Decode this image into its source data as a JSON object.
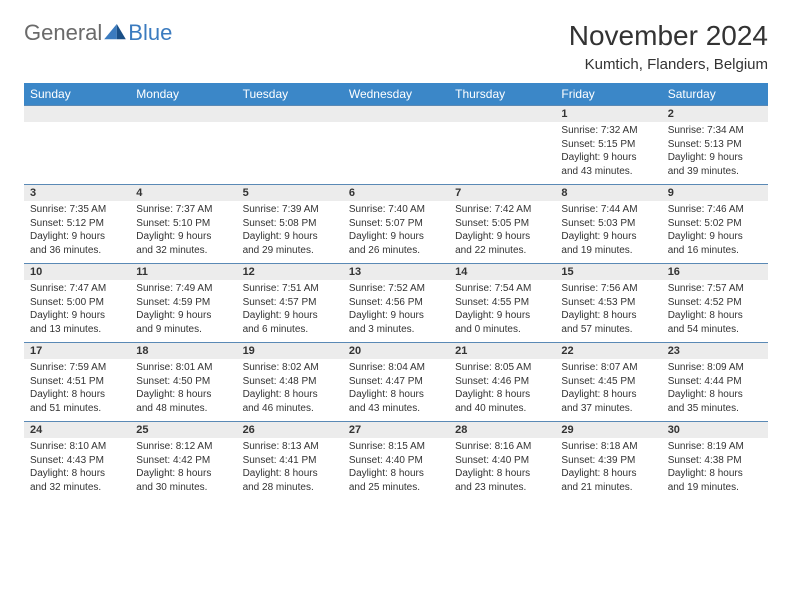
{
  "brand": {
    "part1": "General",
    "part2": "Blue"
  },
  "title": "November 2024",
  "location": "Kumtich, Flanders, Belgium",
  "colors": {
    "header_bg": "#3b87c8",
    "header_text": "#ffffff",
    "daynum_bg": "#ececec",
    "border": "#5a89b5",
    "logo_gray": "#6a6a6a",
    "logo_blue": "#3b7bbf"
  },
  "days": [
    "Sunday",
    "Monday",
    "Tuesday",
    "Wednesday",
    "Thursday",
    "Friday",
    "Saturday"
  ],
  "weeks": [
    [
      {
        "n": "",
        "sr": "",
        "ss": "",
        "dl": ""
      },
      {
        "n": "",
        "sr": "",
        "ss": "",
        "dl": ""
      },
      {
        "n": "",
        "sr": "",
        "ss": "",
        "dl": ""
      },
      {
        "n": "",
        "sr": "",
        "ss": "",
        "dl": ""
      },
      {
        "n": "",
        "sr": "",
        "ss": "",
        "dl": ""
      },
      {
        "n": "1",
        "sr": "Sunrise: 7:32 AM",
        "ss": "Sunset: 5:15 PM",
        "dl": "Daylight: 9 hours and 43 minutes."
      },
      {
        "n": "2",
        "sr": "Sunrise: 7:34 AM",
        "ss": "Sunset: 5:13 PM",
        "dl": "Daylight: 9 hours and 39 minutes."
      }
    ],
    [
      {
        "n": "3",
        "sr": "Sunrise: 7:35 AM",
        "ss": "Sunset: 5:12 PM",
        "dl": "Daylight: 9 hours and 36 minutes."
      },
      {
        "n": "4",
        "sr": "Sunrise: 7:37 AM",
        "ss": "Sunset: 5:10 PM",
        "dl": "Daylight: 9 hours and 32 minutes."
      },
      {
        "n": "5",
        "sr": "Sunrise: 7:39 AM",
        "ss": "Sunset: 5:08 PM",
        "dl": "Daylight: 9 hours and 29 minutes."
      },
      {
        "n": "6",
        "sr": "Sunrise: 7:40 AM",
        "ss": "Sunset: 5:07 PM",
        "dl": "Daylight: 9 hours and 26 minutes."
      },
      {
        "n": "7",
        "sr": "Sunrise: 7:42 AM",
        "ss": "Sunset: 5:05 PM",
        "dl": "Daylight: 9 hours and 22 minutes."
      },
      {
        "n": "8",
        "sr": "Sunrise: 7:44 AM",
        "ss": "Sunset: 5:03 PM",
        "dl": "Daylight: 9 hours and 19 minutes."
      },
      {
        "n": "9",
        "sr": "Sunrise: 7:46 AM",
        "ss": "Sunset: 5:02 PM",
        "dl": "Daylight: 9 hours and 16 minutes."
      }
    ],
    [
      {
        "n": "10",
        "sr": "Sunrise: 7:47 AM",
        "ss": "Sunset: 5:00 PM",
        "dl": "Daylight: 9 hours and 13 minutes."
      },
      {
        "n": "11",
        "sr": "Sunrise: 7:49 AM",
        "ss": "Sunset: 4:59 PM",
        "dl": "Daylight: 9 hours and 9 minutes."
      },
      {
        "n": "12",
        "sr": "Sunrise: 7:51 AM",
        "ss": "Sunset: 4:57 PM",
        "dl": "Daylight: 9 hours and 6 minutes."
      },
      {
        "n": "13",
        "sr": "Sunrise: 7:52 AM",
        "ss": "Sunset: 4:56 PM",
        "dl": "Daylight: 9 hours and 3 minutes."
      },
      {
        "n": "14",
        "sr": "Sunrise: 7:54 AM",
        "ss": "Sunset: 4:55 PM",
        "dl": "Daylight: 9 hours and 0 minutes."
      },
      {
        "n": "15",
        "sr": "Sunrise: 7:56 AM",
        "ss": "Sunset: 4:53 PM",
        "dl": "Daylight: 8 hours and 57 minutes."
      },
      {
        "n": "16",
        "sr": "Sunrise: 7:57 AM",
        "ss": "Sunset: 4:52 PM",
        "dl": "Daylight: 8 hours and 54 minutes."
      }
    ],
    [
      {
        "n": "17",
        "sr": "Sunrise: 7:59 AM",
        "ss": "Sunset: 4:51 PM",
        "dl": "Daylight: 8 hours and 51 minutes."
      },
      {
        "n": "18",
        "sr": "Sunrise: 8:01 AM",
        "ss": "Sunset: 4:50 PM",
        "dl": "Daylight: 8 hours and 48 minutes."
      },
      {
        "n": "19",
        "sr": "Sunrise: 8:02 AM",
        "ss": "Sunset: 4:48 PM",
        "dl": "Daylight: 8 hours and 46 minutes."
      },
      {
        "n": "20",
        "sr": "Sunrise: 8:04 AM",
        "ss": "Sunset: 4:47 PM",
        "dl": "Daylight: 8 hours and 43 minutes."
      },
      {
        "n": "21",
        "sr": "Sunrise: 8:05 AM",
        "ss": "Sunset: 4:46 PM",
        "dl": "Daylight: 8 hours and 40 minutes."
      },
      {
        "n": "22",
        "sr": "Sunrise: 8:07 AM",
        "ss": "Sunset: 4:45 PM",
        "dl": "Daylight: 8 hours and 37 minutes."
      },
      {
        "n": "23",
        "sr": "Sunrise: 8:09 AM",
        "ss": "Sunset: 4:44 PM",
        "dl": "Daylight: 8 hours and 35 minutes."
      }
    ],
    [
      {
        "n": "24",
        "sr": "Sunrise: 8:10 AM",
        "ss": "Sunset: 4:43 PM",
        "dl": "Daylight: 8 hours and 32 minutes."
      },
      {
        "n": "25",
        "sr": "Sunrise: 8:12 AM",
        "ss": "Sunset: 4:42 PM",
        "dl": "Daylight: 8 hours and 30 minutes."
      },
      {
        "n": "26",
        "sr": "Sunrise: 8:13 AM",
        "ss": "Sunset: 4:41 PM",
        "dl": "Daylight: 8 hours and 28 minutes."
      },
      {
        "n": "27",
        "sr": "Sunrise: 8:15 AM",
        "ss": "Sunset: 4:40 PM",
        "dl": "Daylight: 8 hours and 25 minutes."
      },
      {
        "n": "28",
        "sr": "Sunrise: 8:16 AM",
        "ss": "Sunset: 4:40 PM",
        "dl": "Daylight: 8 hours and 23 minutes."
      },
      {
        "n": "29",
        "sr": "Sunrise: 8:18 AM",
        "ss": "Sunset: 4:39 PM",
        "dl": "Daylight: 8 hours and 21 minutes."
      },
      {
        "n": "30",
        "sr": "Sunrise: 8:19 AM",
        "ss": "Sunset: 4:38 PM",
        "dl": "Daylight: 8 hours and 19 minutes."
      }
    ]
  ]
}
